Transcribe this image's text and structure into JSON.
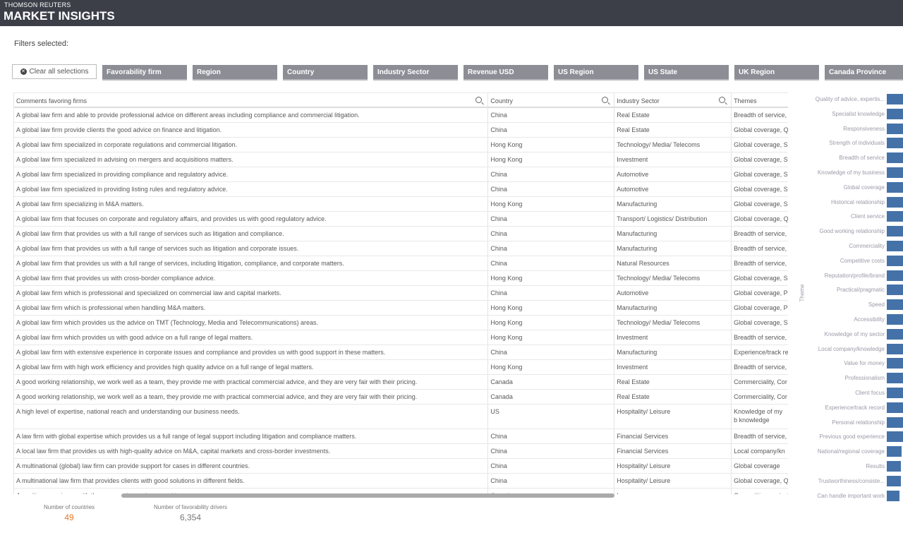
{
  "header": {
    "brand_line1": "THOMSON REUTERS",
    "brand_line2": "MARKET INSIGHTS"
  },
  "filters": {
    "label": "Filters selected:",
    "clear_label": "Clear all selections",
    "buttons": [
      "Favorability firm",
      "Region",
      "Country",
      "Industry Sector",
      "Revenue USD",
      "US Region",
      "US State",
      "UK Region",
      "Canada Province"
    ]
  },
  "table": {
    "columns": [
      "Comments favoring firms",
      "Country",
      "Industry Sector",
      "Themes"
    ],
    "rows": [
      [
        "A global law firm and able to provide professional advice on different areas including compliance and commercial litigation.",
        "China",
        "Real Estate",
        "Breadth of service,"
      ],
      [
        "A global law firm provide clients the good advice on finance and litigation.",
        "China",
        "Real Estate",
        "Global coverage, Q"
      ],
      [
        "A global law firm specialized in corporate regulations and commercial litigation.",
        "Hong Kong",
        "Technology/ Media/ Telecoms",
        "Global coverage, Sp"
      ],
      [
        "A global law firm specialized in advising on mergers and acquisitions matters.",
        "Hong Kong",
        "Investment",
        "Global coverage, Sp"
      ],
      [
        "A global law firm specialized in providing compliance and regulatory advice.",
        "China",
        "Automotive",
        "Global coverage, Sp"
      ],
      [
        "A global law firm specialized in providing listing rules and regulatory advice.",
        "China",
        "Automotive",
        "Global coverage, Sp"
      ],
      [
        "A global law firm specializing in M&A matters.",
        "Hong Kong",
        "Manufacturing",
        "Global coverage, Sp"
      ],
      [
        "A global law firm that focuses on corporate and regulatory affairs, and provides us with good regulatory advice.",
        "China",
        "Transport/ Logistics/ Distribution",
        "Global coverage, Q"
      ],
      [
        "A global law firm that provides us with a full range of services such as litigation and compliance.",
        "China",
        "Manufacturing",
        "Breadth of service,"
      ],
      [
        "A global law firm that provides us with a full range of services such as litigation and corporate issues.",
        "China",
        "Manufacturing",
        "Breadth of service,"
      ],
      [
        "A global law firm that provides us with a full range of services, including litigation, compliance, and corporate matters.",
        "China",
        "Natural Resources",
        "Breadth of service,"
      ],
      [
        "A global law firm that provides us with cross-border compliance advice.",
        "Hong Kong",
        "Technology/ Media/ Telecoms",
        "Global coverage, Sp"
      ],
      [
        "A global law firm which is professional and specialized on commercial law and capital markets.",
        "China",
        "Automotive",
        "Global coverage, Pr"
      ],
      [
        "A global law firm which is professional when handling M&A matters.",
        "Hong Kong",
        "Manufacturing",
        "Global coverage, Pr"
      ],
      [
        "A global law firm which provides us the advice on TMT (Technology, Media and Telecommunications) areas.",
        "Hong Kong",
        "Technology/ Media/ Telecoms",
        "Global coverage, Sp"
      ],
      [
        "A global law firm which provides us with good advice on a full range of legal matters.",
        "Hong Kong",
        "Investment",
        "Breadth of service,"
      ],
      [
        "A global law firm with extensive experience in corporate issues and compliance and provides us with good support in these matters.",
        "China",
        "Manufacturing",
        "Experience/track re"
      ],
      [
        "A global law firm with high work efficiency and provides high quality advice on a full range of legal matters.",
        "Hong Kong",
        "Investment",
        "Breadth of service,"
      ],
      [
        "A good working relationship, we work well as a team, they provide me with practical commercial advice, and they are very fair with their pricing.",
        "Canada",
        "Real Estate",
        "Commerciality, Cor"
      ],
      [
        "A good working relationship, we work well as a team, they provide me with practical commercial advice, and they are very fair with their pricing.",
        "Canada",
        "Real Estate",
        "Commerciality, Cor"
      ],
      [
        "A high level of expertise, national reach and understanding our business needs.",
        "US",
        "Hospitality/ Leisure",
        "Knowledge of my b knowledge"
      ],
      [
        "A law firm with global expertise which provides us a full range of legal support including litigation and compliance matters.",
        "China",
        "Financial Services",
        "Breadth of service,"
      ],
      [
        "A local law firm that provides us with high-quality advice on M&A, capital markets and cross-border investments.",
        "China",
        "Financial Services",
        "Local company/kn"
      ],
      [
        "A multinational (global) law firm can provide support for cases in different countries.",
        "China",
        "Hospitality/ Leisure",
        "Global coverage"
      ],
      [
        "A multinational law firm that provides clients with good solutions in different fields.",
        "China",
        "Hospitality/ Leisure",
        "Global coverage, Q"
      ],
      [
        "A positive experience with them, expertise and reasonable cost.",
        "Canada",
        "Insurance",
        "Competitive costs, knowledge"
      ]
    ]
  },
  "theme_chart": {
    "axis_title": "Theme",
    "bar_color": "#4472a8",
    "themes": [
      "Quality of advice, expertis...",
      "Specialist knowledge",
      "Responsiveness",
      "Strength of individuals",
      "Breadth of service",
      "Knowledge of my business",
      "Global coverage",
      "Historical relationship",
      "Client service",
      "Good working relationship",
      "Commerciality",
      "Competitive costs",
      "Reputation/profile/brand",
      "Practical/pragmatic",
      "Speed",
      "Accessibility",
      "Knowledge of my sector",
      "Local company/knowledge",
      "Value for money",
      "Professionalism",
      "Client focus",
      "Experience/track record",
      "Personal relationship",
      "Previous good experience",
      "National/regional coverage",
      "Results",
      "Trustworthiness/consiste...",
      "Can handle important work"
    ],
    "relative_values": [
      1,
      1,
      1,
      1,
      1,
      1,
      1,
      1,
      1,
      1,
      1,
      1,
      1,
      1,
      1,
      1,
      1,
      1,
      1,
      1,
      1,
      1,
      1,
      1,
      0.87,
      0.83,
      0.83,
      0.75
    ]
  },
  "kpis": [
    {
      "label": "Number of countries",
      "value": "49",
      "color": "#e07b2a"
    },
    {
      "label": "Number of favorability drivers",
      "value": "6,354",
      "color": "#555555"
    }
  ]
}
